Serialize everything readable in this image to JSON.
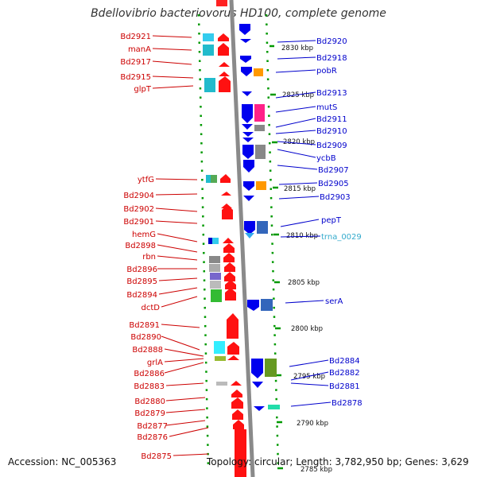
{
  "title": "Bdellovibrio bacteriovorus HD100, complete genome",
  "accession": "Accession: NC_005363",
  "summary": "Topology: circular; Length: 3,782,950 bp; Genes: 3,629",
  "colors": {
    "reverse_strand": "#ff0000",
    "forward_strand": "#0000ff",
    "trna": "#33aacc",
    "backbone": "#888888",
    "ticks": "#009900"
  },
  "kbp_markers": [
    "2830 kbp",
    "2825 kbp",
    "2820 kbp",
    "2815 kbp",
    "2810 kbp",
    "2805 kbp",
    "2800 kbp",
    "2795 kbp",
    "2790 kbp",
    "2785 kbp"
  ],
  "left_labels": [
    "Bd2921",
    "manA",
    "Bd2917",
    "Bd2915",
    "glpT",
    "ytfG",
    "Bd2904",
    "Bd2902",
    "Bd2901",
    "hemG",
    "Bd2898",
    "rbn",
    "Bd2896",
    "Bd2895",
    "Bd2894",
    "dctD",
    "Bd2891",
    "Bd2890",
    "Bd2888",
    "grlA",
    "Bd2886",
    "Bd2883",
    "Bd2880",
    "Bd2879",
    "Bd2877",
    "Bd2876",
    "Bd2875"
  ],
  "right_labels": [
    "Bd2920",
    "Bd2918",
    "pobR",
    "Bd2913",
    "mutS",
    "Bd2911",
    "Bd2910",
    "Bd2909",
    "ycbB",
    "Bd2907",
    "Bd2905",
    "Bd2903",
    "pepT",
    "trna_0029",
    "serA",
    "Bd2884",
    "Bd2882",
    "Bd2881",
    "Bd2878"
  ]
}
